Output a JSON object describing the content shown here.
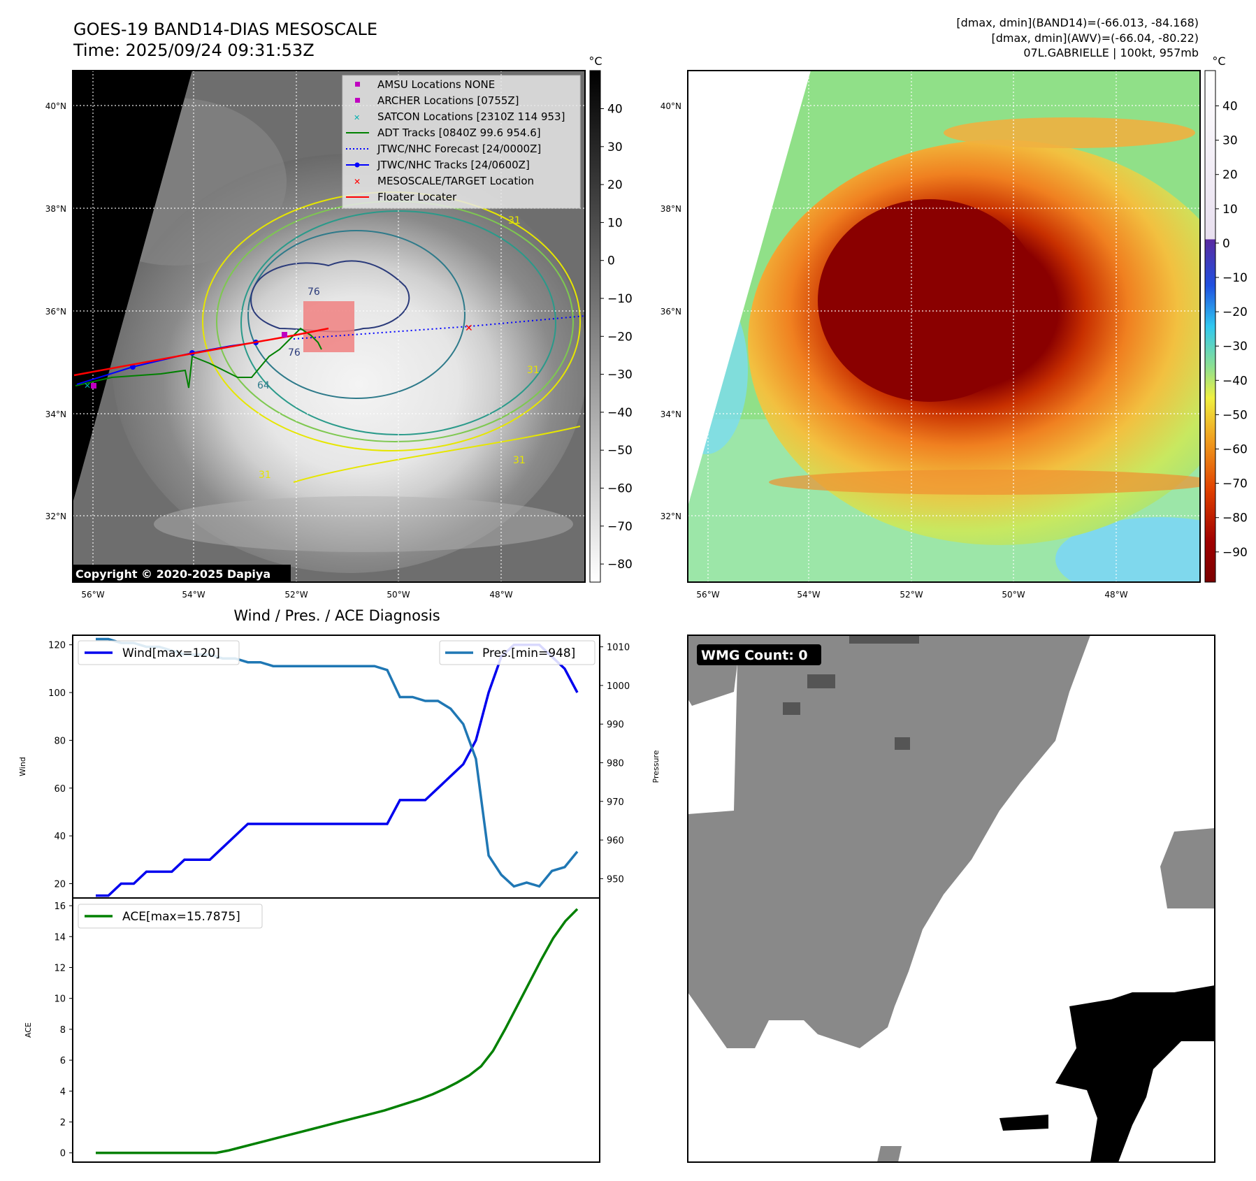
{
  "header": {
    "title": "GOES-19 BAND14-DIAS MESOSCALE",
    "time": "Time: 2025/09/24 09:31:53Z",
    "info_line1": "[dmax, dmin](BAND14)=(-66.013, -84.168)",
    "info_line2": "[dmax, dmin](AWV)=(-66.04, -80.22)",
    "info_line3": "07L.GABRIELLE | 100kt, 957mb"
  },
  "colors": {
    "wind": "#0000ee",
    "pres": "#1f77b4",
    "ace": "#008000",
    "forecast": "#0000ff",
    "adt": "#008000",
    "floater": "#ff0000",
    "target_box": "#f08080"
  },
  "ir_panel": {
    "colorbar_unit": "°C",
    "colorbar_ticks": [
      "40",
      "30",
      "20",
      "10",
      "0",
      "−10",
      "−20",
      "−30",
      "−40",
      "−50",
      "−60",
      "−70",
      "−80"
    ],
    "lat_labels": [
      "40°N",
      "38°N",
      "36°N",
      "34°N",
      "32°N"
    ],
    "lon_labels": [
      "56°W",
      "54°W",
      "52°W",
      "50°W",
      "48°W"
    ],
    "contour_labels": [
      "31",
      "31",
      "31",
      "64",
      "76",
      "76",
      "31"
    ],
    "copyright": "Copyright © 2020-2025 Dapiya",
    "legend": [
      {
        "label": "AMSU Locations NONE",
        "marker": "square",
        "color": "#c000c0"
      },
      {
        "label": "ARCHER Locations [0755Z]",
        "marker": "square",
        "color": "#c000c0"
      },
      {
        "label": "SATCON Locations [2310Z 114 953]",
        "marker": "x",
        "color": "#00b0b0"
      },
      {
        "label": "ADT Tracks [0840Z 99.6 954.6]",
        "marker": "line",
        "color": "#008000"
      },
      {
        "label": "JTWC/NHC Forecast [24/0000Z]",
        "marker": "dotted",
        "color": "#0000ff"
      },
      {
        "label": "JTWC/NHC Tracks [24/0600Z]",
        "marker": "line-dot",
        "color": "#0000ff"
      },
      {
        "label": "MESOSCALE/TARGET Location",
        "marker": "x",
        "color": "#ff0000"
      },
      {
        "label": "Floater Locater",
        "marker": "line",
        "color": "#ff0000"
      }
    ]
  },
  "awv_panel": {
    "colorbar_unit": "°C",
    "colorbar_ticks": [
      "40",
      "30",
      "20",
      "10",
      "0",
      "−10",
      "−20",
      "−30",
      "−40",
      "−50",
      "−60",
      "−70",
      "−80",
      "−90"
    ],
    "lat_labels": [
      "40°N",
      "38°N",
      "36°N",
      "34°N",
      "32°N"
    ],
    "lon_labels": [
      "56°W",
      "54°W",
      "52°W",
      "50°W",
      "48°W"
    ]
  },
  "wmg_panel": {
    "badge": "WMG Count: 0"
  },
  "diag_title": "Wind / Pres. / ACE Diagnosis",
  "chart_data": [
    {
      "type": "line",
      "title": "Wind / Pres. / ACE Diagnosis",
      "ylabel": "Wind",
      "ylim": [
        14,
        124
      ],
      "yticks": [
        20,
        40,
        60,
        80,
        100,
        120
      ],
      "legend": "Wind[max=120]",
      "series": [
        {
          "name": "Wind[max=120]",
          "values": [
            15,
            15,
            20,
            20,
            25,
            25,
            25,
            30,
            30,
            30,
            35,
            40,
            45,
            45,
            45,
            45,
            45,
            45,
            45,
            45,
            45,
            45,
            45,
            45,
            55,
            55,
            55,
            60,
            65,
            70,
            80,
            100,
            115,
            120,
            120,
            120,
            115,
            110,
            100
          ]
        }
      ],
      "secondary": {
        "ylabel": "Pressure",
        "ylim": [
          945,
          1013
        ],
        "yticks": [
          950,
          960,
          970,
          980,
          990,
          1000,
          1010
        ],
        "legend": "Pres.[min=948]",
        "series": [
          {
            "name": "Pres.[min=948]",
            "values": [
              1012,
              1012,
              1011,
              1011,
              1010,
              1010,
              1009,
              1008,
              1008,
              1008,
              1007,
              1007,
              1006,
              1006,
              1005,
              1005,
              1005,
              1005,
              1005,
              1005,
              1005,
              1005,
              1005,
              1004,
              997,
              997,
              996,
              996,
              994,
              990,
              981,
              956,
              951,
              948,
              949,
              948,
              952,
              953,
              957
            ]
          }
        ]
      }
    },
    {
      "type": "line",
      "ylabel": "ACE",
      "ylim": [
        -0.6,
        16.5
      ],
      "yticks": [
        0,
        2,
        4,
        6,
        8,
        10,
        12,
        14,
        16
      ],
      "legend": "ACE[max=15.7875]",
      "series": [
        {
          "name": "ACE[max=15.7875]",
          "values": [
            0,
            0,
            0,
            0,
            0,
            0,
            0,
            0,
            0,
            0,
            0,
            0.15,
            0.35,
            0.55,
            0.75,
            0.95,
            1.15,
            1.35,
            1.55,
            1.75,
            1.95,
            2.15,
            2.35,
            2.55,
            2.75,
            3.0,
            3.25,
            3.5,
            3.8,
            4.15,
            4.55,
            5.0,
            5.6,
            6.6,
            8.0,
            9.5,
            11.0,
            12.5,
            13.9,
            15.0,
            15.7875
          ]
        }
      ]
    }
  ]
}
